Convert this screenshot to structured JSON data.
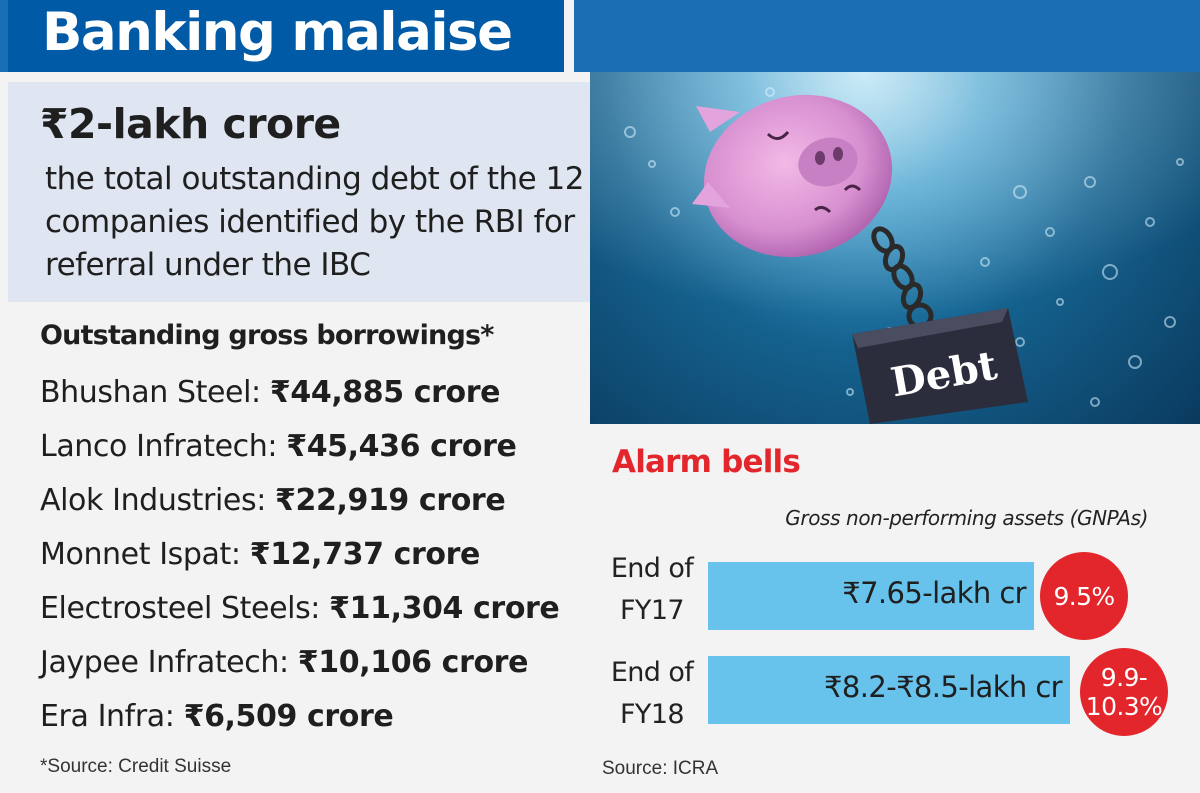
{
  "title": "Banking malaise",
  "headline": {
    "value": "₹2-lakh crore",
    "description": "the total outstanding debt of the 12 companies identified by the RBI for referral under the IBC"
  },
  "borrowings": {
    "heading": "Outstanding gross borrowings*",
    "items": [
      {
        "company": "Bhushan Steel:",
        "amount": "₹44,885 crore"
      },
      {
        "company": "Lanco Infratech:",
        "amount": "₹45,436 crore"
      },
      {
        "company": "Alok Industries:",
        "amount": "₹22,919 crore"
      },
      {
        "company": "Monnet Ispat:",
        "amount": "₹12,737 crore"
      },
      {
        "company": "Electrosteel Steels:",
        "amount": "₹11,304 crore"
      },
      {
        "company": "Jaypee Infratech:",
        "amount": "₹10,106 crore"
      },
      {
        "company": "Era Infra:",
        "amount": "₹6,509 crore"
      }
    ],
    "source": "*Source: Credit Suisse"
  },
  "illustration": {
    "weight_label": "Debt",
    "icons": [
      "piggy-bank-icon",
      "chain-icon",
      "weight-icon"
    ]
  },
  "chart_data": {
    "type": "bar",
    "title": "Alarm bells",
    "subtitle": "Gross non-performing assets (GNPAs)",
    "categories": [
      "End of FY17",
      "End of FY18"
    ],
    "category_lines": [
      [
        "End of",
        "FY17"
      ],
      [
        "End of",
        "FY18"
      ]
    ],
    "values": [
      7.65,
      8.5
    ],
    "value_labels": [
      "₹7.65-lakh cr",
      "₹8.2-₹8.5-lakh cr"
    ],
    "percent_labels": [
      "9.5%",
      "9.9-\n10.3%"
    ],
    "unit": "lakh cr",
    "source": "Source: ICRA"
  },
  "colors": {
    "title_bg": "#005aa6",
    "header_bg": "#1a6fb4",
    "panel_bg": "#dfe6f1",
    "bar": "#67c2ec",
    "accent_red": "#e3262c"
  }
}
